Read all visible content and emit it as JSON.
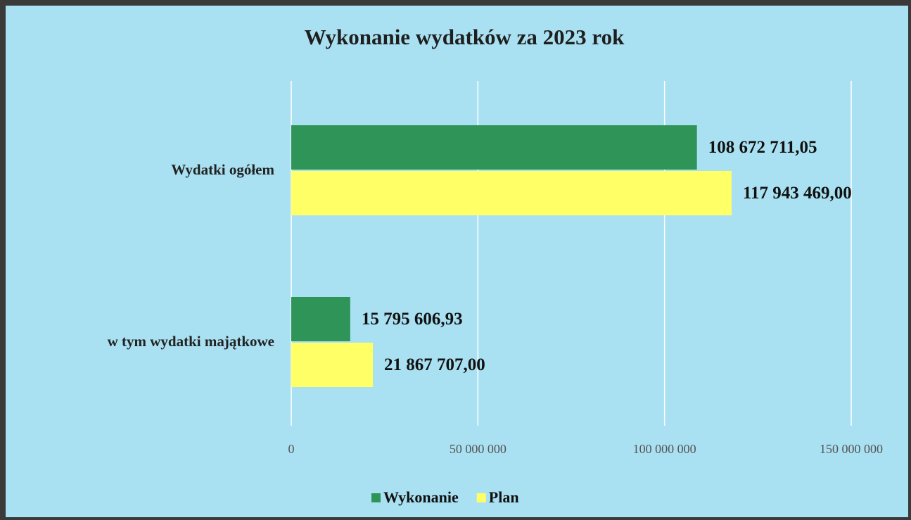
{
  "chart_data": {
    "type": "hbar",
    "title": "Wykonanie wydatków za 2023 rok",
    "categories": [
      "Wydatki ogółem",
      "w tym wydatki majątkowe"
    ],
    "series": [
      {
        "name": "Wykonanie",
        "color": "#2f9458",
        "values": [
          108672711.05,
          15795606.93
        ],
        "value_labels": [
          "108 672 711,05",
          "15 795 606,93"
        ]
      },
      {
        "name": "Plan",
        "color": "#ffff66",
        "values": [
          117943469.0,
          21867707.0
        ],
        "value_labels": [
          "117 943 469,00",
          "21 867 707,00"
        ]
      }
    ],
    "xlim": [
      0,
      150000000
    ],
    "xticks": [
      0,
      {
        "value": 50000000,
        "label": "50 000 000"
      },
      {
        "value": 100000000,
        "label": "100 000 000"
      },
      {
        "value": 150000000,
        "label": "150 000 000"
      }
    ],
    "grid": true,
    "legend": "bottom",
    "background": "#a9e1f2"
  }
}
